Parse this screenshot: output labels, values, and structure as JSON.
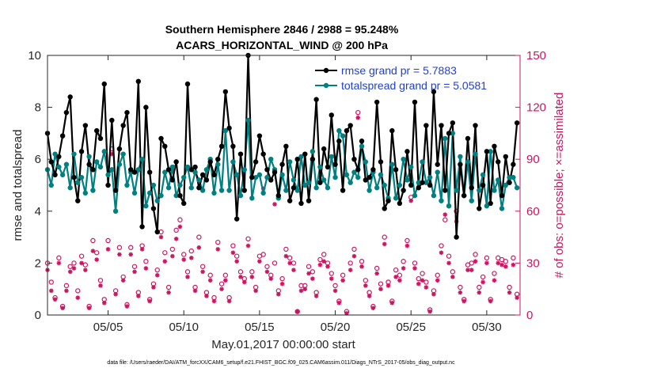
{
  "chart_data": {
    "type": "line",
    "title": "Southern Hemisphere 2846 / 2988 = 95.248%",
    "subtitle": "ACARS_HORIZONTAL_WIND @ 200 hPa",
    "xlabel": "May.01,2017 00:00:00 start",
    "ylabel": "rmse and totalspread",
    "ylabel_right": "# of obs: o=possible; ×=assimilated",
    "xlim": [
      1,
      32.2
    ],
    "ylim": [
      0,
      10
    ],
    "ylim_right": [
      0,
      150
    ],
    "x_ticks": [
      5,
      10,
      15,
      20,
      25,
      30
    ],
    "x_tick_labels": [
      "05/05",
      "05/10",
      "05/15",
      "05/20",
      "05/25",
      "05/30"
    ],
    "y_ticks": [
      0,
      2,
      4,
      6,
      8,
      10
    ],
    "y_ticks_right": [
      0,
      30,
      60,
      90,
      120,
      150
    ],
    "footnote": "data file: /Users/raeder/DAI/ATM_forcXX/CAM6_setup/f.e21.FHIST_BGC.f09_025.CAM6assim.011/Diags_NTrS_2017-05/obs_diag_output.nc",
    "colors": {
      "rmse": "#000000",
      "spread": "#008080",
      "obs": "#cc1460"
    },
    "series": [
      {
        "name": "rmse",
        "legend": "rmse grand pr = 5.7883",
        "color": "#000000",
        "x": [
          1.0,
          1.25,
          1.5,
          1.75,
          2.0,
          2.25,
          2.5,
          2.75,
          3.0,
          3.25,
          3.5,
          3.75,
          4.0,
          4.25,
          4.5,
          4.75,
          5.0,
          5.25,
          5.5,
          5.75,
          6.0,
          6.25,
          6.5,
          6.75,
          7.0,
          7.25,
          7.5,
          7.75,
          8.0,
          8.25,
          8.5,
          8.75,
          9.0,
          9.25,
          9.5,
          9.75,
          10.0,
          10.25,
          10.5,
          10.75,
          11.0,
          11.25,
          11.5,
          11.75,
          12.0,
          12.25,
          12.5,
          12.75,
          13.0,
          13.25,
          13.5,
          13.75,
          14.0,
          14.25,
          14.5,
          14.75,
          15.0,
          15.25,
          15.5,
          15.75,
          16.0,
          16.25,
          16.5,
          16.75,
          17.0,
          17.25,
          17.5,
          17.75,
          18.0,
          18.25,
          18.5,
          18.75,
          19.0,
          19.25,
          19.5,
          19.75,
          20.0,
          20.25,
          20.5,
          20.75,
          21.0,
          21.25,
          21.5,
          21.75,
          22.0,
          22.25,
          22.5,
          22.75,
          23.0,
          23.25,
          23.5,
          23.75,
          24.0,
          24.25,
          24.5,
          24.75,
          25.0,
          25.25,
          25.5,
          25.75,
          26.0,
          26.25,
          26.5,
          26.75,
          27.0,
          27.25,
          27.5,
          27.75,
          28.0,
          28.25,
          28.5,
          28.75,
          29.0,
          29.25,
          29.5,
          29.75,
          30.0,
          30.25,
          30.5,
          30.75,
          31.0,
          31.25,
          31.5,
          31.75,
          32.0
        ],
        "y": [
          7.0,
          5.9,
          5.4,
          6.1,
          6.9,
          7.8,
          8.4,
          5.3,
          4.4,
          6.3,
          7.3,
          5.8,
          5.6,
          7.1,
          6.8,
          8.9,
          5.0,
          7.5,
          4.8,
          6.4,
          7.3,
          7.8,
          5.6,
          5.5,
          9.0,
          3.4,
          8.0,
          5.5,
          4.1,
          3.2,
          6.8,
          6.5,
          5.6,
          5.2,
          5.9,
          4.6,
          4.3,
          8.9,
          5.6,
          5.7,
          4.9,
          5.4,
          5.2,
          5.9,
          5.4,
          6.0,
          6.5,
          8.6,
          7.2,
          6.5,
          3.7,
          6.2,
          4.8,
          10.0,
          5.3,
          5.9,
          6.9,
          6.2,
          5.6,
          5.2,
          5.5,
          4.6,
          5.8,
          6.5,
          4.4,
          4.9,
          6.0,
          4.3,
          6.2,
          4.4,
          6.0,
          8.3,
          5.1,
          6.4,
          5.7,
          7.7,
          5.8,
          6.7,
          4.8,
          7.1,
          7.3,
          6.0,
          5.6,
          6.7,
          5.2,
          5.3,
          5.6,
          8.2,
          5.9,
          4.1,
          4.4,
          7.1,
          5.6,
          4.3,
          4.8,
          6.3,
          5.0,
          8.2,
          4.9,
          5.1,
          7.3,
          5.0,
          8.6,
          5.8,
          7.3,
          4.8,
          7.0,
          7.4,
          3.0,
          5.8,
          4.6,
          6.8,
          4.9,
          7.3,
          4.1,
          5.0,
          6.3,
          4.3,
          6.5,
          5.9,
          4.6,
          6.1,
          5.1,
          5.8,
          7.4
        ]
      },
      {
        "name": "totalspread",
        "legend": "totalspread grand pr = 5.0581",
        "color": "#008080",
        "x": [
          1.0,
          1.25,
          1.5,
          1.75,
          2.0,
          2.25,
          2.5,
          2.75,
          3.0,
          3.25,
          3.5,
          3.75,
          4.0,
          4.25,
          4.5,
          4.75,
          5.0,
          5.25,
          5.5,
          5.75,
          6.0,
          6.25,
          6.5,
          6.75,
          7.0,
          7.25,
          7.5,
          7.75,
          8.0,
          8.25,
          8.5,
          8.75,
          9.0,
          9.25,
          9.5,
          9.75,
          10.0,
          10.25,
          10.5,
          10.75,
          11.0,
          11.25,
          11.5,
          11.75,
          12.0,
          12.25,
          12.5,
          12.75,
          13.0,
          13.25,
          13.5,
          13.75,
          14.0,
          14.25,
          14.5,
          14.75,
          15.0,
          15.25,
          15.5,
          15.75,
          16.0,
          16.25,
          16.5,
          16.75,
          17.0,
          17.25,
          17.5,
          17.75,
          18.0,
          18.25,
          18.5,
          18.75,
          19.0,
          19.25,
          19.5,
          19.75,
          20.0,
          20.25,
          20.5,
          20.75,
          21.0,
          21.25,
          21.5,
          21.75,
          22.0,
          22.25,
          22.5,
          22.75,
          23.0,
          23.25,
          23.5,
          23.75,
          24.0,
          24.25,
          24.5,
          24.75,
          25.0,
          25.25,
          25.5,
          25.75,
          26.0,
          26.25,
          26.5,
          26.75,
          27.0,
          27.25,
          27.5,
          27.75,
          28.0,
          28.25,
          28.5,
          28.75,
          29.0,
          29.25,
          29.5,
          29.75,
          30.0,
          30.25,
          30.5,
          30.75,
          31.0,
          31.25,
          31.5,
          31.75,
          32.0
        ],
        "y": [
          5.6,
          5.0,
          6.2,
          5.7,
          5.4,
          5.8,
          4.9,
          6.2,
          5.1,
          5.3,
          4.7,
          6.1,
          4.8,
          5.9,
          5.7,
          6.3,
          5.4,
          5.6,
          4.0,
          5.8,
          6.2,
          5.0,
          5.5,
          4.7,
          5.6,
          6.0,
          4.2,
          4.7,
          5.0,
          4.4,
          4.6,
          5.5,
          4.9,
          5.7,
          4.6,
          5.0,
          5.3,
          5.7,
          4.9,
          5.5,
          5.2,
          4.8,
          5.6,
          6.0,
          4.7,
          5.8,
          4.8,
          7.1,
          4.8,
          5.9,
          5.4,
          4.6,
          5.6,
          7.5,
          4.5,
          5.3,
          5.4,
          4.7,
          5.3,
          6.0,
          5.6,
          4.5,
          5.4,
          4.8,
          5.9,
          5.2,
          4.8,
          6.1,
          5.0,
          5.1,
          6.3,
          4.9,
          5.7,
          5.2,
          4.9,
          6.1,
          5.3,
          7.1,
          6.9,
          5.4,
          5.1,
          5.5,
          5.3,
          6.5,
          5.9,
          4.8,
          5.5,
          4.9,
          5.4,
          5.0,
          4.5,
          5.8,
          4.5,
          5.0,
          6.0,
          5.2,
          5.7,
          4.6,
          5.1,
          5.9,
          5.1,
          5.3,
          4.6,
          5.5,
          4.4,
          6.8,
          4.2,
          7.0,
          4.8,
          6.1,
          4.6,
          5.9,
          4.4,
          6.2,
          4.8,
          5.4,
          4.2,
          6.3,
          4.8,
          5.2,
          4.1,
          5.0,
          5.3,
          5.3,
          4.9
        ]
      },
      {
        "name": "possible obs",
        "legend": "o=possible",
        "axis": "right",
        "color": "#cc1460",
        "x": [
          1.0,
          1.25,
          1.5,
          1.75,
          2.0,
          2.25,
          2.5,
          2.75,
          3.0,
          3.25,
          3.5,
          3.75,
          4.0,
          4.25,
          4.5,
          4.75,
          5.0,
          5.25,
          5.5,
          5.75,
          6.0,
          6.25,
          6.5,
          6.75,
          7.0,
          7.25,
          7.5,
          7.75,
          8.0,
          8.25,
          8.5,
          8.75,
          9.0,
          9.25,
          9.5,
          9.75,
          10.0,
          10.25,
          10.5,
          10.75,
          11.0,
          11.25,
          11.5,
          11.75,
          12.0,
          12.25,
          12.5,
          12.75,
          13.0,
          13.25,
          13.5,
          13.75,
          14.0,
          14.25,
          14.5,
          14.75,
          15.0,
          15.25,
          15.5,
          15.75,
          16.0,
          16.25,
          16.5,
          16.75,
          17.0,
          17.25,
          17.5,
          17.75,
          18.0,
          18.25,
          18.5,
          18.75,
          19.0,
          19.25,
          19.5,
          19.75,
          20.0,
          20.25,
          20.5,
          20.75,
          21.0,
          21.25,
          21.5,
          21.75,
          22.0,
          22.25,
          22.5,
          22.75,
          23.0,
          23.25,
          23.5,
          23.75,
          24.0,
          24.25,
          24.5,
          24.75,
          25.0,
          25.25,
          25.5,
          25.75,
          26.0,
          26.25,
          26.5,
          26.75,
          27.0,
          27.25,
          27.5,
          27.75,
          28.0,
          28.25,
          28.5,
          28.75,
          29.0,
          29.25,
          29.5,
          29.75,
          30.0,
          30.25,
          30.5,
          30.75,
          31.0,
          31.25,
          31.5,
          31.75,
          32.0
        ],
        "y": [
          30,
          19,
          10,
          33,
          5,
          17,
          28,
          30,
          14,
          34,
          29,
          5,
          43,
          36,
          20,
          9,
          43,
          96,
          14,
          39,
          22,
          6,
          39,
          28,
          13,
          40,
          31,
          9,
          18,
          26,
          48,
          36,
          16,
          38,
          49,
          55,
          35,
          25,
          37,
          16,
          45,
          28,
          13,
          23,
          10,
          42,
          18,
          23,
          10,
          40,
          34,
          25,
          21,
          44,
          25,
          16,
          34,
          35,
          28,
          23,
          30,
          14,
          21,
          38,
          33,
          30,
          2,
          17,
          17,
          28,
          25,
          13,
          32,
          35,
          30,
          24,
          17,
          8,
          23,
          2,
          30,
          38,
          117,
          31,
          20,
          13,
          5,
          27,
          18,
          45,
          19,
          8,
          26,
          23,
          31,
          43,
          68,
          30,
          21,
          24,
          19,
          3,
          14,
          23,
          40,
          55,
          34,
          25,
          60,
          16,
          9,
          29,
          30,
          35,
          16,
          22,
          33,
          9,
          24,
          33,
          32,
          31,
          16,
          33,
          12
        ]
      },
      {
        "name": "assimilated obs",
        "legend": "×=assimilated",
        "axis": "right",
        "color": "#cc1460",
        "x": [
          1.0,
          1.25,
          1.5,
          1.75,
          2.0,
          2.25,
          2.5,
          2.75,
          3.0,
          3.25,
          3.5,
          3.75,
          4.0,
          4.25,
          4.5,
          4.75,
          5.0,
          5.25,
          5.5,
          5.75,
          6.0,
          6.25,
          6.5,
          6.75,
          7.0,
          7.25,
          7.5,
          7.75,
          8.0,
          8.25,
          8.5,
          8.75,
          9.0,
          9.25,
          9.5,
          9.75,
          10.0,
          10.25,
          10.5,
          10.75,
          11.0,
          11.25,
          11.5,
          11.75,
          12.0,
          12.25,
          12.5,
          12.75,
          13.0,
          13.25,
          13.5,
          13.75,
          14.0,
          14.25,
          14.5,
          14.75,
          15.0,
          15.25,
          15.5,
          15.75,
          16.0,
          16.25,
          16.5,
          16.75,
          17.0,
          17.25,
          17.5,
          17.75,
          18.0,
          18.25,
          18.5,
          18.75,
          19.0,
          19.25,
          19.5,
          19.75,
          20.0,
          20.25,
          20.5,
          20.75,
          21.0,
          21.25,
          21.5,
          21.75,
          22.0,
          22.25,
          22.5,
          22.75,
          23.0,
          23.25,
          23.5,
          23.75,
          24.0,
          24.25,
          24.5,
          24.75,
          25.0,
          25.25,
          25.5,
          25.75,
          26.0,
          26.25,
          26.5,
          26.75,
          27.0,
          27.25,
          27.5,
          27.75,
          28.0,
          28.25,
          28.5,
          28.75,
          29.0,
          29.25,
          29.5,
          29.75,
          30.0,
          30.25,
          30.5,
          30.75,
          31.0,
          31.25,
          31.5,
          31.75,
          32.0
        ],
        "y": [
          26,
          14,
          9,
          30,
          4,
          14,
          25,
          27,
          10,
          30,
          26,
          4,
          37,
          32,
          17,
          7,
          38,
          93,
          12,
          35,
          20,
          5,
          35,
          25,
          11,
          38,
          27,
          8,
          16,
          23,
          45,
          31,
          13,
          34,
          44,
          51,
          32,
          22,
          33,
          14,
          39,
          25,
          11,
          20,
          8,
          38,
          15,
          20,
          8,
          36,
          31,
          22,
          19,
          40,
          22,
          14,
          31,
          73,
          25,
          21,
          64,
          12,
          18,
          34,
          30,
          26,
          2,
          14,
          15,
          24,
          21,
          11,
          29,
          31,
          28,
          21,
          14,
          7,
          20,
          1,
          26,
          34,
          114,
          28,
          17,
          11,
          4,
          24,
          15,
          41,
          17,
          7,
          22,
          20,
          27,
          40,
          66,
          27,
          18,
          20,
          16,
          2,
          12,
          20,
          36,
          58,
          30,
          22,
          54,
          13,
          8,
          26,
          26,
          31,
          13,
          19,
          30,
          8,
          20,
          30,
          29,
          28,
          13,
          29,
          10
        ]
      }
    ]
  }
}
